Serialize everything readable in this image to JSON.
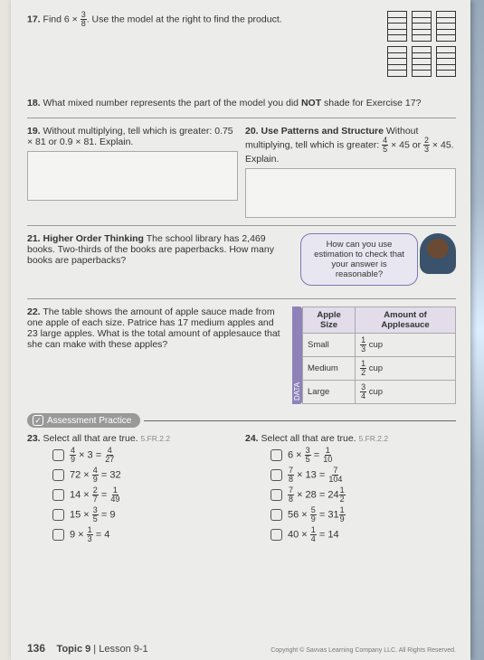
{
  "q17": {
    "num": "17.",
    "text_a": "Find 6 × ",
    "frac_n": "3",
    "frac_d": "8",
    "text_b": ". Use the model at the right to find the product.",
    "grid_rows": 5
  },
  "q18": {
    "num": "18.",
    "text_a": "What mixed number represents the part of the model you did ",
    "bold": "NOT",
    "text_b": " shade for Exercise 17?"
  },
  "q19": {
    "num": "19.",
    "text": "Without multiplying, tell which is greater: 0.75 × 81 or 0.9 × 81. Explain."
  },
  "q20": {
    "num": "20.",
    "bold": "Use Patterns and Structure",
    "text_a": " Without multiplying, tell which is greater: ",
    "f1n": "4",
    "f1d": "5",
    "text_b": " × 45 or ",
    "f2n": "2",
    "f2d": "3",
    "text_c": " × 45. Explain."
  },
  "q21": {
    "num": "21.",
    "bold": "Higher Order Thinking",
    "text": " The school library has 2,469 books. Two-thirds of the books are paperbacks. How many books are paperbacks?",
    "bubble": "How can you use estimation to check that your answer is reasonable?"
  },
  "q22": {
    "num": "22.",
    "text": "The table shows the amount of apple sauce made from one apple of each size. Patrice has 17 medium apples and 23 large apples. What is the total amount of applesauce that she can make with these apples?",
    "tab": "DATA",
    "th1": "Apple Size",
    "th2": "Amount of Applesauce",
    "r1a": "Small",
    "r1n": "1",
    "r1d": "3",
    "r1u": "cup",
    "r2a": "Medium",
    "r2n": "1",
    "r2d": "2",
    "r2u": "cup",
    "r3a": "Large",
    "r3n": "3",
    "r3d": "4",
    "r3u": "cup"
  },
  "assess": {
    "label": "Assessment Practice"
  },
  "q23": {
    "num": "23.",
    "text": "Select all that are true.",
    "std": "5.FR.2.2",
    "opts": [
      {
        "lhs_n": "4",
        "lhs_d": "9",
        "mid": " × 3 = ",
        "rhs_n": "4",
        "rhs_d": "27"
      },
      {
        "pre": "72 × ",
        "lhs_n": "4",
        "lhs_d": "9",
        "mid": " = 32"
      },
      {
        "pre": "14 × ",
        "lhs_n": "2",
        "lhs_d": "7",
        "mid": " = ",
        "rhs_n": "1",
        "rhs_d": "49"
      },
      {
        "pre": "15 × ",
        "lhs_n": "3",
        "lhs_d": "5",
        "mid": " = 9"
      },
      {
        "pre": "9 × ",
        "lhs_n": "1",
        "lhs_d": "3",
        "mid": " = 4"
      }
    ]
  },
  "q24": {
    "num": "24.",
    "text": "Select all that are true.",
    "std": "5.FR.2.2",
    "opts": [
      {
        "pre": "6 × ",
        "lhs_n": "3",
        "lhs_d": "5",
        "mid": " = ",
        "rhs_n": "1",
        "rhs_d": "10"
      },
      {
        "lhs_n": "7",
        "lhs_d": "8",
        "mid": " × 13 = ",
        "rhs_n": "7",
        "rhs_d": "104"
      },
      {
        "lhs_n": "7",
        "lhs_d": "8",
        "mid": " × 28 = 24",
        "mix_n": "1",
        "mix_d": "2"
      },
      {
        "pre": "56 × ",
        "lhs_n": "5",
        "lhs_d": "9",
        "mid": " = 31",
        "mix_n": "1",
        "mix_d": "9"
      },
      {
        "pre": "40 × ",
        "lhs_n": "1",
        "lhs_d": "4",
        "mid": " = 14"
      }
    ]
  },
  "footer": {
    "page": "136",
    "topic": "Topic 9",
    "lesson": "Lesson 9-1",
    "copy": "Copyright © Savvas Learning Company LLC. All Rights Reserved."
  }
}
